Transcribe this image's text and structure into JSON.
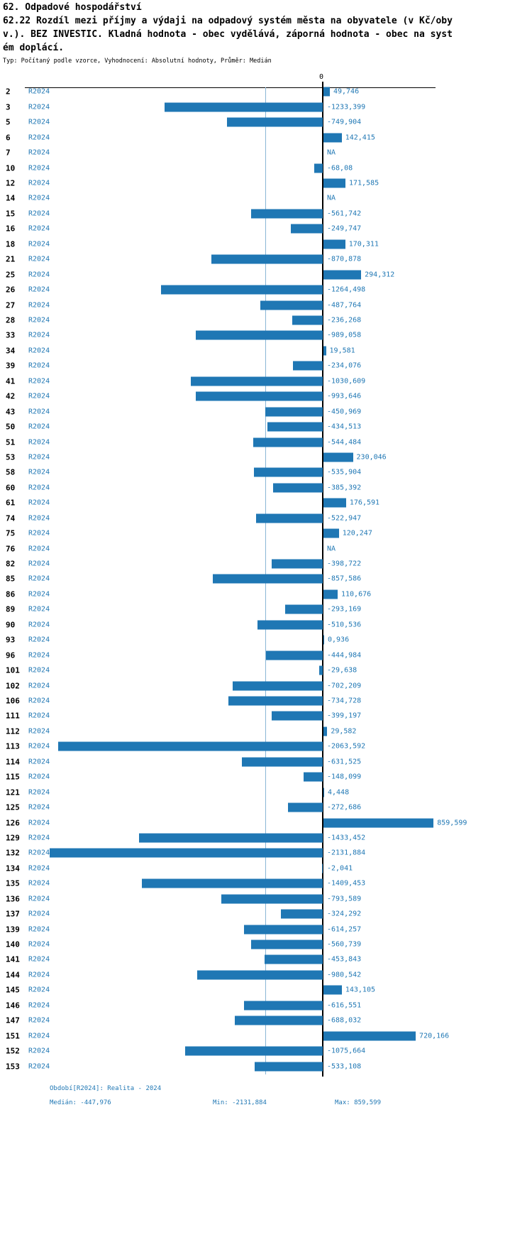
{
  "header": {
    "title": "62. Odpadové hospodářství",
    "subtitle_lines": [
      "62.22 Rozdíl mezi příjmy a výdaji na odpadový systém města na obyvatele (v Kč/oby",
      "v.). BEZ INVESTIC. Kladná hodnota - obec vydělává, záporná hodnota - obec na syst",
      "ém doplácí."
    ],
    "meta": "Typ: Počítaný podle vzorce, Vyhodnocení: Absolutní hodnoty, Průměr: Medián"
  },
  "chart_data": {
    "type": "bar",
    "orientation": "horizontal",
    "series_label": "R2024",
    "zero_label": "0",
    "axis": {
      "min": -2131.884,
      "max": 859.599,
      "median": -447.976,
      "zero": 0
    },
    "colors": {
      "bar": "#1f77b4",
      "value_label": "#1f77b4",
      "median_line": "#8ab6d6",
      "zero_line": "#000000"
    },
    "rows": [
      {
        "id": "2",
        "label": "49,746",
        "value": 49.746
      },
      {
        "id": "3",
        "label": "-1233,399",
        "value": -1233.399
      },
      {
        "id": "5",
        "label": "-749,904",
        "value": -749.904
      },
      {
        "id": "6",
        "label": "142,415",
        "value": 142.415
      },
      {
        "id": "7",
        "label": "NA",
        "value": null
      },
      {
        "id": "10",
        "label": "-68,08",
        "value": -68.08
      },
      {
        "id": "12",
        "label": "171,585",
        "value": 171.585
      },
      {
        "id": "14",
        "label": "NA",
        "value": null
      },
      {
        "id": "15",
        "label": "-561,742",
        "value": -561.742
      },
      {
        "id": "16",
        "label": "-249,747",
        "value": -249.747
      },
      {
        "id": "18",
        "label": "170,311",
        "value": 170.311
      },
      {
        "id": "21",
        "label": "-870,878",
        "value": -870.878
      },
      {
        "id": "25",
        "label": "294,312",
        "value": 294.312
      },
      {
        "id": "26",
        "label": "-1264,498",
        "value": -1264.498
      },
      {
        "id": "27",
        "label": "-487,764",
        "value": -487.764
      },
      {
        "id": "28",
        "label": "-236,268",
        "value": -236.268
      },
      {
        "id": "33",
        "label": "-989,058",
        "value": -989.058
      },
      {
        "id": "34",
        "label": "19,581",
        "value": 19.581
      },
      {
        "id": "39",
        "label": "-234,076",
        "value": -234.076
      },
      {
        "id": "41",
        "label": "-1030,609",
        "value": -1030.609
      },
      {
        "id": "42",
        "label": "-993,646",
        "value": -993.646
      },
      {
        "id": "43",
        "label": "-450,969",
        "value": -450.969
      },
      {
        "id": "50",
        "label": "-434,513",
        "value": -434.513
      },
      {
        "id": "51",
        "label": "-544,484",
        "value": -544.484
      },
      {
        "id": "53",
        "label": "230,046",
        "value": 230.046
      },
      {
        "id": "58",
        "label": "-535,904",
        "value": -535.904
      },
      {
        "id": "60",
        "label": "-385,392",
        "value": -385.392
      },
      {
        "id": "61",
        "label": "176,591",
        "value": 176.591
      },
      {
        "id": "74",
        "label": "-522,947",
        "value": -522.947
      },
      {
        "id": "75",
        "label": "120,247",
        "value": 120.247
      },
      {
        "id": "76",
        "label": "NA",
        "value": null
      },
      {
        "id": "82",
        "label": "-398,722",
        "value": -398.722
      },
      {
        "id": "85",
        "label": "-857,586",
        "value": -857.586
      },
      {
        "id": "86",
        "label": "110,676",
        "value": 110.676
      },
      {
        "id": "89",
        "label": "-293,169",
        "value": -293.169
      },
      {
        "id": "90",
        "label": "-510,536",
        "value": -510.536
      },
      {
        "id": "93",
        "label": "0,936",
        "value": 0.936
      },
      {
        "id": "96",
        "label": "-444,984",
        "value": -444.984
      },
      {
        "id": "101",
        "label": "-29,638",
        "value": -29.638
      },
      {
        "id": "102",
        "label": "-702,209",
        "value": -702.209
      },
      {
        "id": "106",
        "label": "-734,728",
        "value": -734.728
      },
      {
        "id": "111",
        "label": "-399,197",
        "value": -399.197
      },
      {
        "id": "112",
        "label": "29,582",
        "value": 29.582
      },
      {
        "id": "113",
        "label": "-2063,592",
        "value": -2063.592
      },
      {
        "id": "114",
        "label": "-631,525",
        "value": -631.525
      },
      {
        "id": "115",
        "label": "-148,099",
        "value": -148.099
      },
      {
        "id": "121",
        "label": "4,448",
        "value": 4.448
      },
      {
        "id": "125",
        "label": "-272,686",
        "value": -272.686
      },
      {
        "id": "126",
        "label": "859,599",
        "value": 859.599
      },
      {
        "id": "129",
        "label": "-1433,452",
        "value": -1433.452
      },
      {
        "id": "132",
        "label": "-2131,884",
        "value": -2131.884
      },
      {
        "id": "134",
        "label": "-2,041",
        "value": -2.041
      },
      {
        "id": "135",
        "label": "-1409,453",
        "value": -1409.453
      },
      {
        "id": "136",
        "label": "-793,589",
        "value": -793.589
      },
      {
        "id": "137",
        "label": "-324,292",
        "value": -324.292
      },
      {
        "id": "139",
        "label": "-614,257",
        "value": -614.257
      },
      {
        "id": "140",
        "label": "-560,739",
        "value": -560.739
      },
      {
        "id": "141",
        "label": "-453,843",
        "value": -453.843
      },
      {
        "id": "144",
        "label": "-980,542",
        "value": -980.542
      },
      {
        "id": "145",
        "label": "143,105",
        "value": 143.105
      },
      {
        "id": "146",
        "label": "-616,551",
        "value": -616.551
      },
      {
        "id": "147",
        "label": "-688,032",
        "value": -688.032
      },
      {
        "id": "151",
        "label": "720,166",
        "value": 720.166
      },
      {
        "id": "152",
        "label": "-1075,664",
        "value": -1075.664
      },
      {
        "id": "153",
        "label": "-533,108",
        "value": -533.108
      }
    ]
  },
  "footer": {
    "period": "Období[R2024]: Realita - 2024",
    "median": "Medián: -447,976",
    "min": "Min: -2131,884",
    "max": "Max: 859,599"
  }
}
